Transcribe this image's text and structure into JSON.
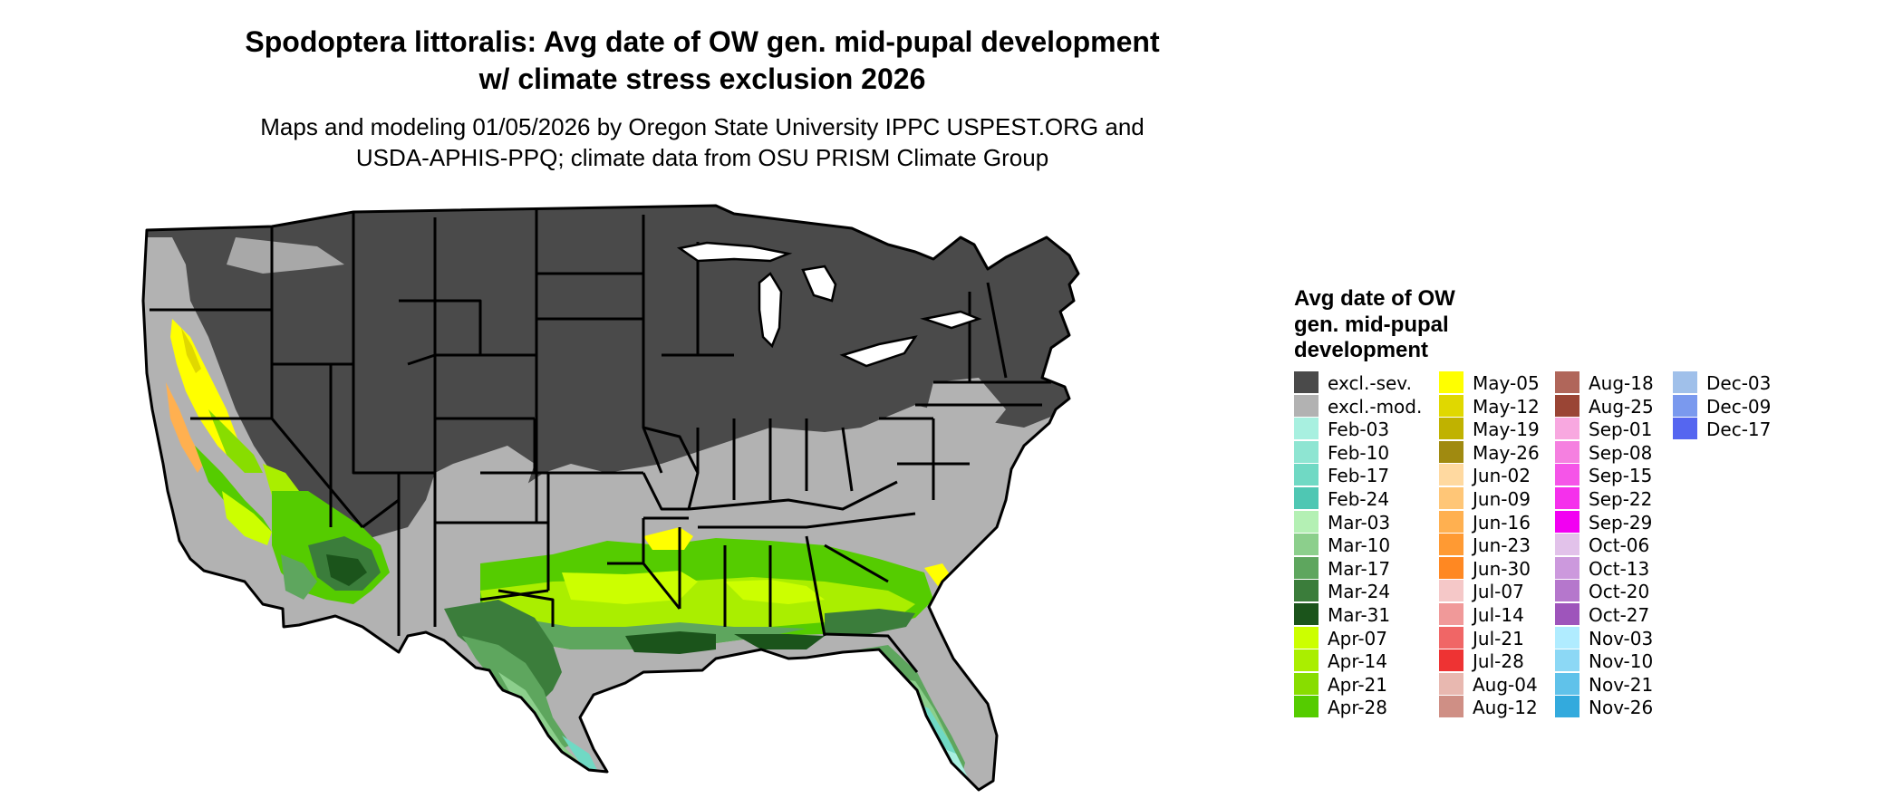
{
  "title": {
    "line1": "Spodoptera littoralis: Avg date of OW gen. mid-pupal development",
    "line2": "w/ climate stress exclusion 2026"
  },
  "subtitle": {
    "line1": "Maps and modeling 01/05/2026 by Oregon State University IPPC USPEST.ORG and",
    "line2": "USDA-APHIS-PPQ; climate data from OSU PRISM Climate Group"
  },
  "legend": {
    "title_lines": [
      "Avg date of OW",
      "gen. mid-pupal",
      "development"
    ],
    "columns": [
      [
        {
          "label": "excl.-sev.",
          "color": "#4a4a4a"
        },
        {
          "label": "excl.-mod.",
          "color": "#b2b2b2"
        },
        {
          "label": "Feb-03",
          "color": "#a8f0e0"
        },
        {
          "label": "Feb-10",
          "color": "#8ee5d2"
        },
        {
          "label": "Feb-17",
          "color": "#70d9c4"
        },
        {
          "label": "Feb-24",
          "color": "#4fc7b3"
        },
        {
          "label": "Mar-03",
          "color": "#b4f0b4"
        },
        {
          "label": "Mar-10",
          "color": "#8ccf8c"
        },
        {
          "label": "Mar-17",
          "color": "#5ea65e"
        },
        {
          "label": "Mar-24",
          "color": "#3b7d3b"
        },
        {
          "label": "Mar-31",
          "color": "#1b541b"
        },
        {
          "label": "Apr-07",
          "color": "#ccff00"
        },
        {
          "label": "Apr-14",
          "color": "#aaee00"
        },
        {
          "label": "Apr-21",
          "color": "#88dd00"
        },
        {
          "label": "Apr-28",
          "color": "#55cc00"
        }
      ],
      [
        {
          "label": "May-05",
          "color": "#ffff00"
        },
        {
          "label": "May-12",
          "color": "#e0d800"
        },
        {
          "label": "May-19",
          "color": "#c0b200"
        },
        {
          "label": "May-26",
          "color": "#a08a10"
        },
        {
          "label": "Jun-02",
          "color": "#ffd9a0"
        },
        {
          "label": "Jun-09",
          "color": "#ffc677"
        },
        {
          "label": "Jun-16",
          "color": "#ffb050"
        },
        {
          "label": "Jun-23",
          "color": "#ff9a33"
        },
        {
          "label": "Jun-30",
          "color": "#ff8822"
        },
        {
          "label": "Jul-07",
          "color": "#f5c8c8"
        },
        {
          "label": "Jul-14",
          "color": "#f09999"
        },
        {
          "label": "Jul-21",
          "color": "#f06666"
        },
        {
          "label": "Jul-28",
          "color": "#ee3333"
        },
        {
          "label": "Aug-04",
          "color": "#e8b8b0"
        },
        {
          "label": "Aug-12",
          "color": "#cf8f85"
        }
      ],
      [
        {
          "label": "Aug-18",
          "color": "#b0665a"
        },
        {
          "label": "Aug-25",
          "color": "#9a4535"
        },
        {
          "label": "Sep-01",
          "color": "#f8a8e0"
        },
        {
          "label": "Sep-08",
          "color": "#f580e0"
        },
        {
          "label": "Sep-15",
          "color": "#f555e8"
        },
        {
          "label": "Sep-22",
          "color": "#f530ec"
        },
        {
          "label": "Sep-29",
          "color": "#f200f2"
        },
        {
          "label": "Oct-06",
          "color": "#e2c2ea"
        },
        {
          "label": "Oct-13",
          "color": "#cc99dd"
        },
        {
          "label": "Oct-20",
          "color": "#b577cc"
        },
        {
          "label": "Oct-27",
          "color": "#9e55bb"
        },
        {
          "label": "Nov-03",
          "color": "#b0ecff"
        },
        {
          "label": "Nov-10",
          "color": "#8cd8f5"
        },
        {
          "label": "Nov-21",
          "color": "#60c2ea"
        },
        {
          "label": "Nov-26",
          "color": "#33aadd"
        }
      ],
      [
        {
          "label": "Dec-03",
          "color": "#a0c0ea"
        },
        {
          "label": "Dec-09",
          "color": "#7a99ee"
        },
        {
          "label": "Dec-17",
          "color": "#5566f0"
        }
      ]
    ]
  }
}
